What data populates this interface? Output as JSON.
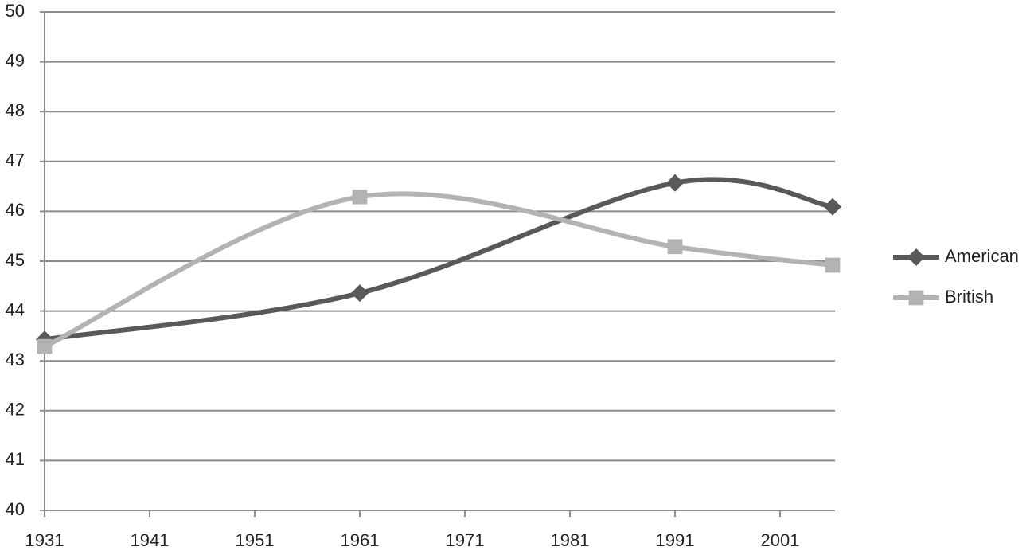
{
  "chart_data": {
    "type": "line",
    "x": [
      1931,
      1961,
      1991,
      2006
    ],
    "xlim": [
      1931,
      2006
    ],
    "xticks": [
      1931,
      1941,
      1951,
      1961,
      1971,
      1981,
      1991,
      2001
    ],
    "ylim": [
      40,
      50
    ],
    "yticks": [
      40,
      41,
      42,
      43,
      44,
      45,
      46,
      47,
      48,
      49,
      50
    ],
    "grid": true,
    "smooth": true,
    "legend": "right",
    "series": [
      {
        "name": "American",
        "color": "#595959",
        "marker": "diamond",
        "values": [
          43.43,
          44.36,
          46.57,
          46.09
        ]
      },
      {
        "name": "British",
        "color": "#b3b3b3",
        "marker": "square",
        "values": [
          43.29,
          46.29,
          45.29,
          44.92
        ]
      }
    ]
  }
}
